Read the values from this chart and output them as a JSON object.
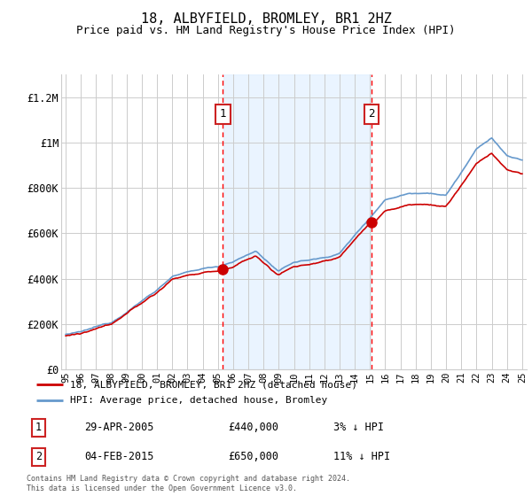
{
  "title": "18, ALBYFIELD, BROMLEY, BR1 2HZ",
  "subtitle": "Price paid vs. HM Land Registry's House Price Index (HPI)",
  "ylim": [
    0,
    1300000
  ],
  "yticks": [
    0,
    200000,
    400000,
    600000,
    800000,
    1000000,
    1200000
  ],
  "ytick_labels": [
    "£0",
    "£200K",
    "£400K",
    "£600K",
    "£800K",
    "£1M",
    "£1.2M"
  ],
  "hpi_color": "#6699cc",
  "price_color": "#cc0000",
  "marker1_year": 2005.33,
  "marker1_price": 440000,
  "marker2_year": 2015.09,
  "marker2_price": 650000,
  "annotation1": {
    "date": "29-APR-2005",
    "price": "£440,000",
    "pct": "3% ↓ HPI",
    "label": "1"
  },
  "annotation2": {
    "date": "04-FEB-2015",
    "price": "£650,000",
    "pct": "11% ↓ HPI",
    "label": "2"
  },
  "legend1": "18, ALBYFIELD, BROMLEY, BR1 2HZ (detached house)",
  "legend2": "HPI: Average price, detached house, Bromley",
  "footer": "Contains HM Land Registry data © Crown copyright and database right 2024.\nThis data is licensed under the Open Government Licence v3.0.",
  "background_color": "#ffffff",
  "shade_color": "#ddeeff",
  "grid_color": "#cccccc",
  "title_fontsize": 11,
  "subtitle_fontsize": 9
}
